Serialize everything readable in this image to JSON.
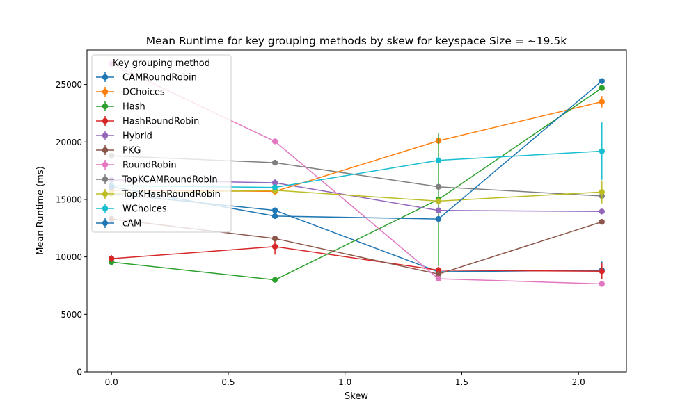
{
  "chart_data": {
    "type": "line",
    "title": "Mean Runtime for key grouping methods by skew for keyspace Size = ~19.5k",
    "xlabel": "Skew",
    "ylabel": "Mean Runtime (ms)",
    "xlim": [
      -0.105,
      2.205
    ],
    "ylim": [
      0,
      28000
    ],
    "xticks": [
      0.0,
      0.5,
      1.0,
      1.5,
      2.0
    ],
    "xtick_labels": [
      "0.0",
      "0.5",
      "1.0",
      "1.5",
      "2.0"
    ],
    "yticks": [
      0,
      5000,
      10000,
      15000,
      20000,
      25000
    ],
    "ytick_labels": [
      "0",
      "5000",
      "10000",
      "15000",
      "20000",
      "25000"
    ],
    "legend": {
      "title": "Key grouping method",
      "placement": "upper-left"
    },
    "x": [
      0.0,
      0.7,
      1.4,
      2.1
    ],
    "series": [
      {
        "name": "CAMRoundRobin",
        "color": "#1f77b4",
        "values": [
          15500,
          14050,
          8700,
          8850
        ],
        "err": [
          0,
          0,
          0,
          750
        ]
      },
      {
        "name": "DChoices",
        "color": "#ff7f0e",
        "values": [
          15800,
          15700,
          20100,
          23500
        ],
        "err": [
          300,
          300,
          300,
          500
        ]
      },
      {
        "name": "Hash",
        "color": "#2ca02c",
        "values": [
          9550,
          8000,
          15000,
          24700
        ],
        "err": [
          0,
          0,
          5800,
          0
        ]
      },
      {
        "name": "HashRoundRobin",
        "color": "#d62728",
        "values": [
          9850,
          10900,
          8850,
          8750
        ],
        "err": [
          300,
          700,
          300,
          700
        ]
      },
      {
        "name": "Hybrid",
        "color": "#9467bd",
        "values": [
          16700,
          16450,
          14050,
          13950
        ],
        "err": [
          300,
          300,
          200,
          200
        ]
      },
      {
        "name": "PKG",
        "color": "#8c564b",
        "values": [
          13300,
          11600,
          8500,
          13050
        ],
        "err": [
          0,
          0,
          0,
          0
        ]
      },
      {
        "name": "RoundRobin",
        "color": "#e377c2",
        "values": [
          26800,
          20050,
          8100,
          7650
        ],
        "err": [
          0,
          0,
          0,
          0
        ]
      },
      {
        "name": "TopKCAMRoundRobin",
        "color": "#7f7f7f",
        "values": [
          18800,
          18200,
          16100,
          15300
        ],
        "err": [
          0,
          0,
          0,
          0
        ]
      },
      {
        "name": "TopKHashRoundRobin",
        "color": "#bcbd22",
        "values": [
          15500,
          15800,
          14850,
          15650
        ],
        "err": [
          300,
          300,
          300,
          1000
        ]
      },
      {
        "name": "WChoices",
        "color": "#17becf",
        "values": [
          16200,
          16050,
          18400,
          19200
        ],
        "err": [
          0,
          0,
          300,
          2500
        ]
      },
      {
        "name": "cAM",
        "color": "#1f77b4",
        "values": [
          16100,
          13550,
          13300,
          25300
        ],
        "err": [
          0,
          0,
          0,
          0
        ]
      }
    ]
  }
}
